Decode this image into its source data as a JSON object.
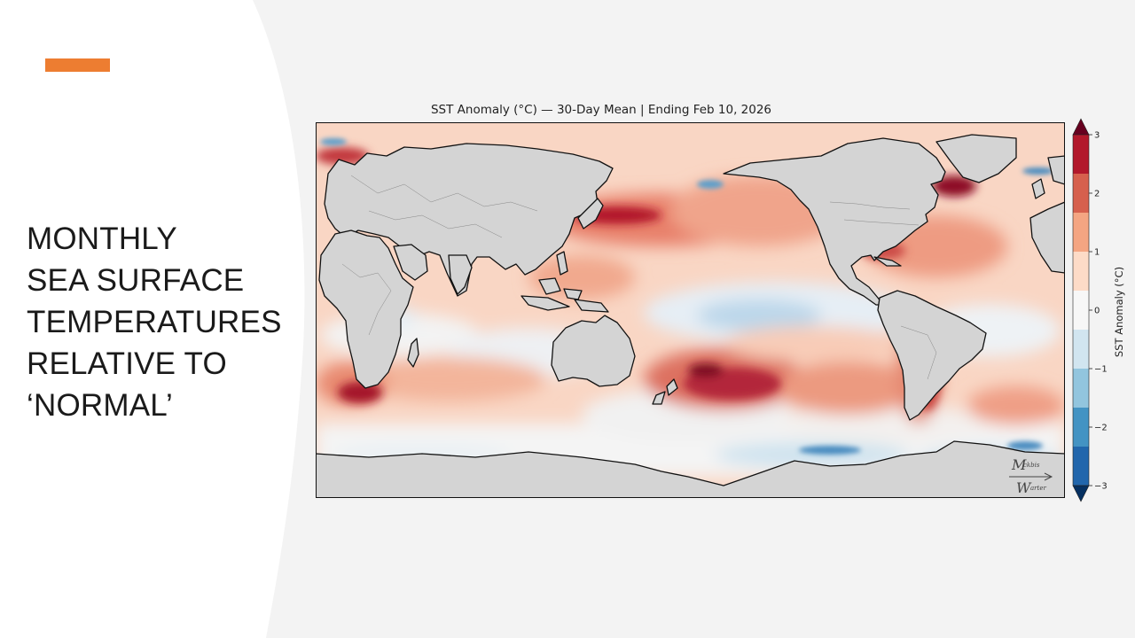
{
  "slide": {
    "title_lines": [
      "MONTHLY",
      "SEA SURFACE",
      "TEMPERATURES",
      "RELATIVE TO",
      "‘NORMAL’"
    ],
    "accent_color": "#ed7d31"
  },
  "map": {
    "title": "SST Anomaly (°C) — 30-Day Mean | Ending Feb 10, 2026",
    "land_color": "#d4d4d4",
    "watermark": "Mckbis Warter",
    "colorbar": {
      "label": "SST Anomaly (°C)",
      "ticks": [
        "3",
        "2",
        "1",
        "0",
        "−1",
        "−2",
        "−3"
      ],
      "levels": [
        "#67001f",
        "#b2182b",
        "#d6604d",
        "#f4a582",
        "#fddbc7",
        "#f7f7f7",
        "#d1e5f0",
        "#92c5de",
        "#4393c3",
        "#2166ac",
        "#053061"
      ]
    }
  }
}
